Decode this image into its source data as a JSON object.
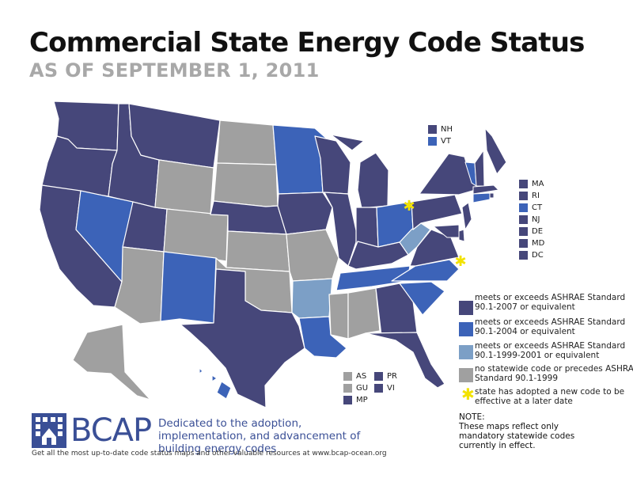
{
  "title": "Commercial State Energy Code Status",
  "subtitle": "AS OF SEPTEMBER 1, 2011",
  "colors": {
    "ashrae2007": "#46477a",
    "ashrae2004": "#3c63b8",
    "ashrae1999": "#7c9fc6",
    "nocode": "#a0a0a0",
    "later_star": "#f2e200",
    "brand": "#3a4f96"
  },
  "states": [
    {
      "abbr": "WA",
      "status": "ashrae2007"
    },
    {
      "abbr": "OR",
      "status": "ashrae2007"
    },
    {
      "abbr": "CA",
      "status": "ashrae2007"
    },
    {
      "abbr": "ID",
      "status": "ashrae2007"
    },
    {
      "abbr": "MT",
      "status": "ashrae2007"
    },
    {
      "abbr": "NV",
      "status": "ashrae2004"
    },
    {
      "abbr": "UT",
      "status": "ashrae2007"
    },
    {
      "abbr": "AZ",
      "status": "nocode"
    },
    {
      "abbr": "WY",
      "status": "nocode"
    },
    {
      "abbr": "CO",
      "status": "nocode"
    },
    {
      "abbr": "NM",
      "status": "ashrae2004"
    },
    {
      "abbr": "ND",
      "status": "nocode"
    },
    {
      "abbr": "SD",
      "status": "nocode"
    },
    {
      "abbr": "NE",
      "status": "ashrae2007"
    },
    {
      "abbr": "KS",
      "status": "nocode"
    },
    {
      "abbr": "OK",
      "status": "nocode"
    },
    {
      "abbr": "TX",
      "status": "ashrae2007"
    },
    {
      "abbr": "MN",
      "status": "ashrae2004"
    },
    {
      "abbr": "IA",
      "status": "ashrae2007"
    },
    {
      "abbr": "MO",
      "status": "nocode"
    },
    {
      "abbr": "AR",
      "status": "ashrae1999"
    },
    {
      "abbr": "LA",
      "status": "ashrae2004"
    },
    {
      "abbr": "WI",
      "status": "ashrae2007"
    },
    {
      "abbr": "IL",
      "status": "ashrae2007"
    },
    {
      "abbr": "MI",
      "status": "ashrae2007"
    },
    {
      "abbr": "IN",
      "status": "ashrae2007"
    },
    {
      "abbr": "OH",
      "status": "ashrae2004"
    },
    {
      "abbr": "KY",
      "status": "ashrae2007"
    },
    {
      "abbr": "TN",
      "status": "ashrae2004"
    },
    {
      "abbr": "MS",
      "status": "nocode"
    },
    {
      "abbr": "AL",
      "status": "nocode"
    },
    {
      "abbr": "GA",
      "status": "ashrae2007"
    },
    {
      "abbr": "FL",
      "status": "ashrae2007"
    },
    {
      "abbr": "SC",
      "status": "ashrae2004"
    },
    {
      "abbr": "NC",
      "status": "ashrae2004"
    },
    {
      "abbr": "VA",
      "status": "ashrae2007"
    },
    {
      "abbr": "WV",
      "status": "ashrae1999"
    },
    {
      "abbr": "PA",
      "status": "ashrae2007"
    },
    {
      "abbr": "NY",
      "status": "ashrae2007"
    },
    {
      "abbr": "ME",
      "status": "ashrae2007"
    },
    {
      "abbr": "AK",
      "status": "nocode"
    },
    {
      "abbr": "HI",
      "status": "ashrae2004"
    }
  ],
  "later_date_states": [
    "OH",
    "NC"
  ],
  "small_states_top": [
    {
      "abbr": "NH",
      "status": "ashrae2007"
    },
    {
      "abbr": "VT",
      "status": "ashrae2004"
    }
  ],
  "small_states_right": [
    {
      "abbr": "MA",
      "status": "ashrae2007"
    },
    {
      "abbr": "RI",
      "status": "ashrae2007"
    },
    {
      "abbr": "CT",
      "status": "ashrae2004"
    },
    {
      "abbr": "NJ",
      "status": "ashrae2007"
    },
    {
      "abbr": "DE",
      "status": "ashrae2007"
    },
    {
      "abbr": "MD",
      "status": "ashrae2007"
    },
    {
      "abbr": "DC",
      "status": "ashrae2007"
    }
  ],
  "territories": [
    {
      "abbr": "AS",
      "status": "nocode"
    },
    {
      "abbr": "PR",
      "status": "ashrae2007"
    },
    {
      "abbr": "GU",
      "status": "nocode"
    },
    {
      "abbr": "VI",
      "status": "ashrae2007"
    },
    {
      "abbr": "MP",
      "status": "ashrae2007"
    }
  ],
  "legend": [
    {
      "color": "ashrae2007",
      "text": "meets or exceeds ASHRAE Standard 90.1-2007 or equivalent"
    },
    {
      "color": "ashrae2004",
      "text": "meets or exceeds ASHRAE Standard 90.1-2004 or equivalent"
    },
    {
      "color": "ashrae1999",
      "text": "meets or exceeds ASHRAE Standard 90.1-1999-2001 or equivalent"
    },
    {
      "color": "nocode",
      "text": "no statewide code or precedes ASHRAE Standard 90.1-1999"
    },
    {
      "color": "later_star",
      "text": "state has adopted a new code to be effective at a later date"
    }
  ],
  "note": {
    "heading": "NOTE:",
    "text": "These maps reflect only mandatory statewide codes currently in effect."
  },
  "brand": {
    "name": "BCAP",
    "tagline": "Dedicated to the adoption, implementation, and advancement of building energy codes",
    "footer": "Get all the most up-to-date code status maps and other valuable resources at www.bcap-ocean.org"
  }
}
